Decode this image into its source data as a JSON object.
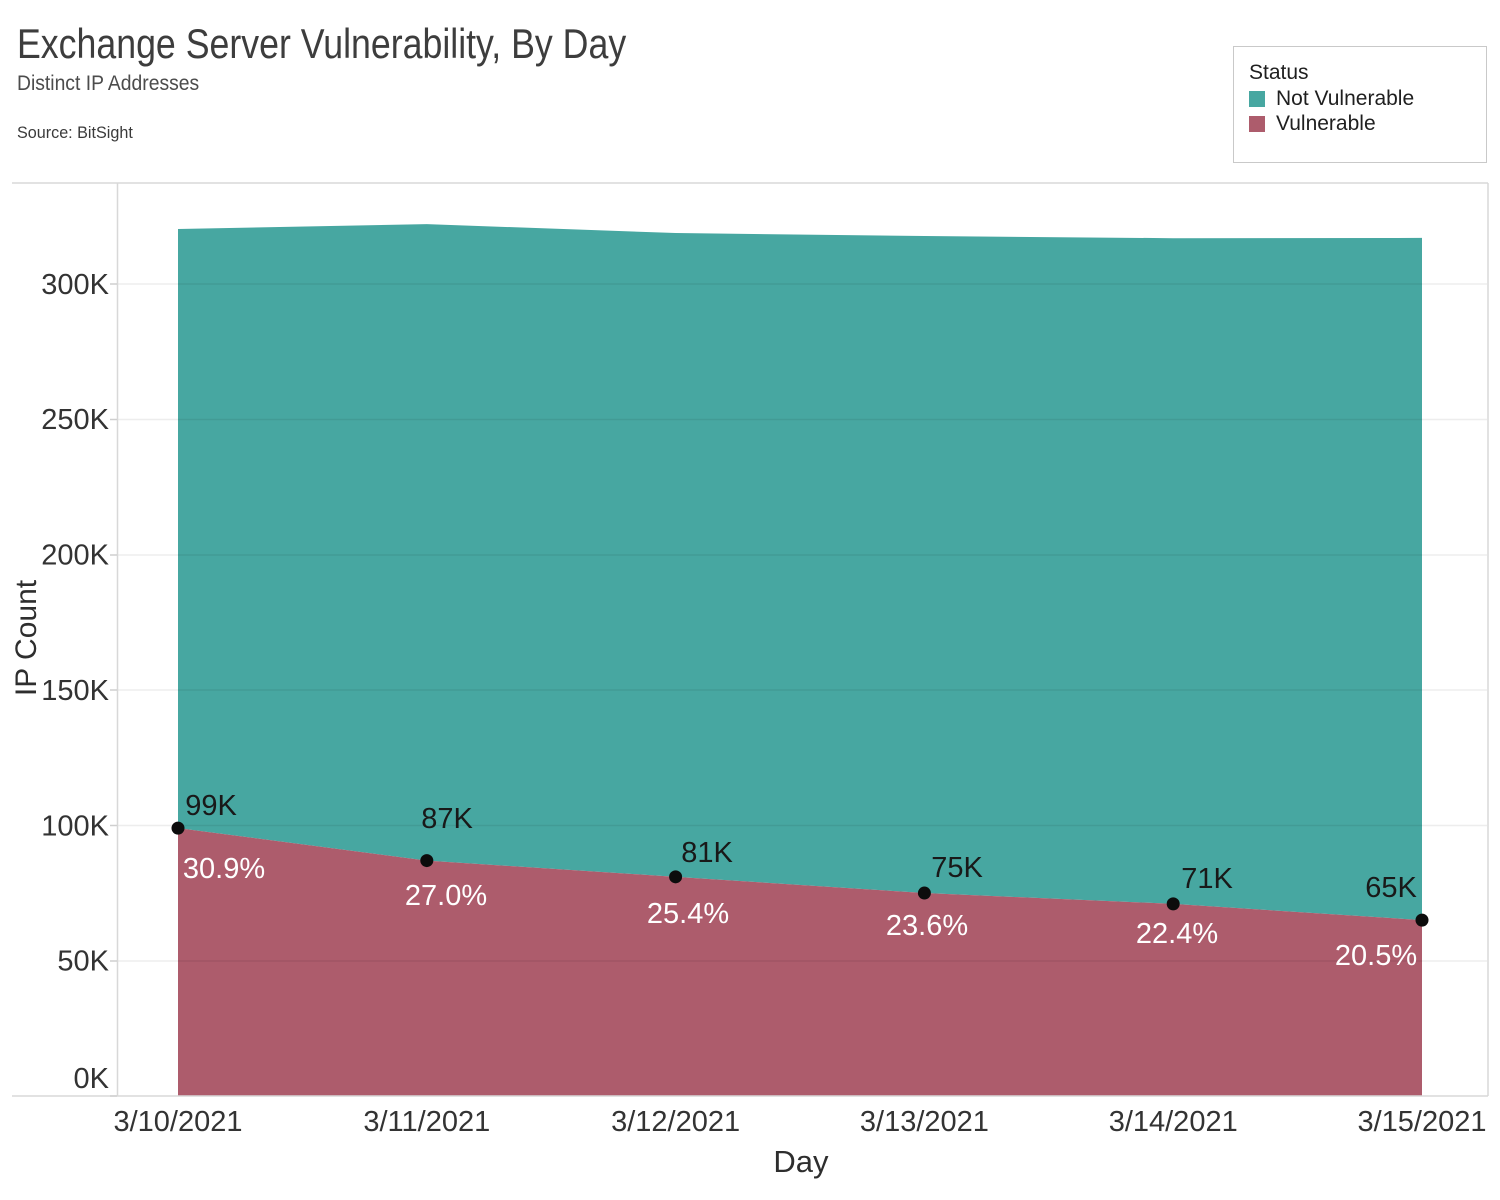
{
  "header": {
    "title": "Exchange Server Vulnerability, By Day",
    "subtitle": "Distinct IP Addresses",
    "source": "Source: BitSight"
  },
  "legend": {
    "title": "Status",
    "items": [
      {
        "label": "Not Vulnerable",
        "color": "#47A7A1"
      },
      {
        "label": "Vulnerable",
        "color": "#AD5C6C"
      }
    ]
  },
  "chart_data": {
    "type": "area",
    "stacked": true,
    "title": "Exchange Server Vulnerability, By Day",
    "subtitle": "Distinct IP Addresses",
    "xlabel": "Day",
    "ylabel": "IP Count",
    "categories": [
      "3/10/2021",
      "3/11/2021",
      "3/12/2021",
      "3/13/2021",
      "3/14/2021",
      "3/15/2021"
    ],
    "series": [
      {
        "name": "Not Vulnerable",
        "color": "#47A7A1",
        "values_k": [
          221.4,
          235.2,
          237.9,
          242.8,
          246,
          252.1
        ]
      },
      {
        "name": "Vulnerable",
        "color": "#AD5C6C",
        "values_k": [
          99,
          87,
          81,
          75,
          71,
          65
        ],
        "point_labels": [
          "99K",
          "87K",
          "81K",
          "75K",
          "71K",
          "65K"
        ],
        "pct_labels": [
          "30.9%",
          "27.0%",
          "25.4%",
          "23.6%",
          "22.4%",
          "20.5%"
        ]
      }
    ],
    "totals_k": [
      320.4,
      322.2,
      318.9,
      317.8,
      317,
      317.1
    ],
    "yticks": [
      "300K",
      "250K",
      "200K",
      "150K",
      "100K",
      "50K",
      "0K"
    ],
    "ylim_k": [
      0,
      338
    ],
    "grid": "horizontal",
    "legend_position": "top-right",
    "point_color": "#0c0c0c"
  }
}
